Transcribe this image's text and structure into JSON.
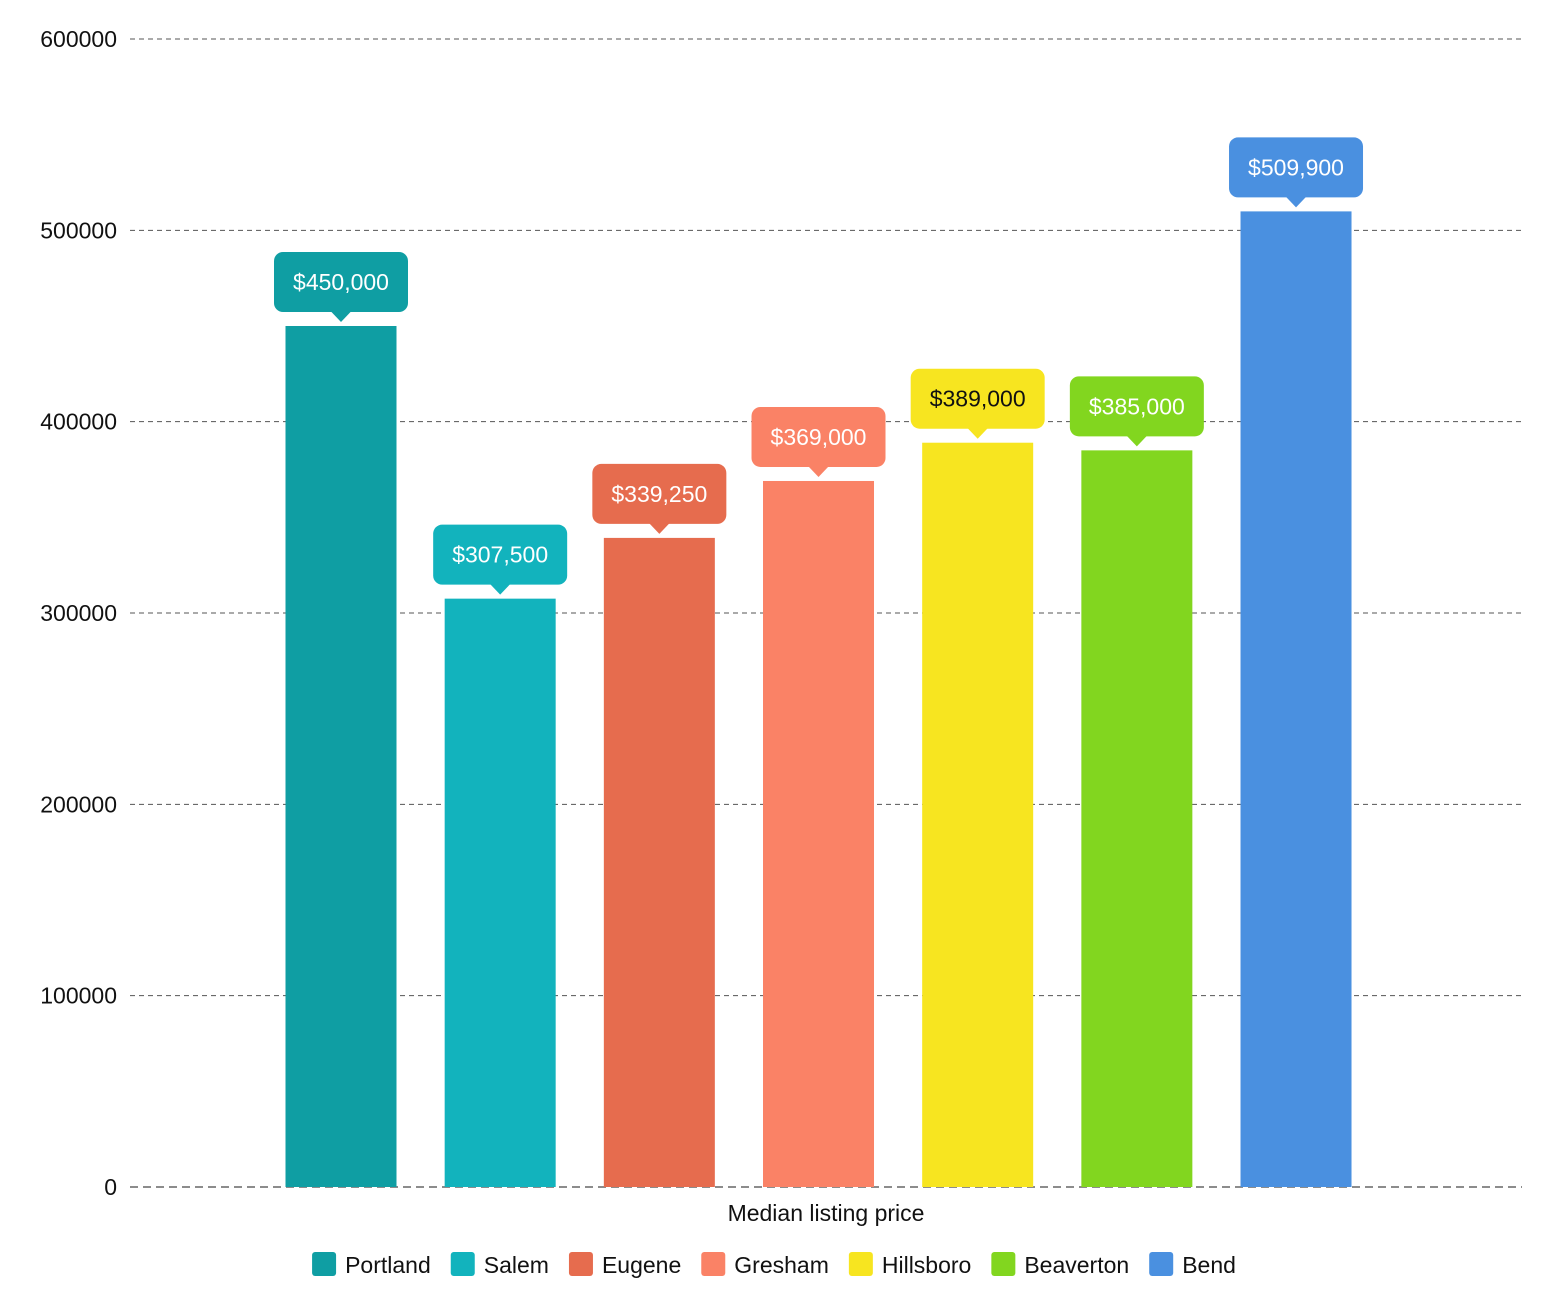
{
  "chart_data": {
    "type": "bar",
    "x_category_label": "Median listing price",
    "ylim": [
      0,
      600000
    ],
    "y_ticks": [
      "0",
      "100000",
      "200000",
      "300000",
      "400000",
      "500000",
      "600000"
    ],
    "grid": true,
    "legend_position": "bottom",
    "series": [
      {
        "name": "Portland",
        "values": [
          450000
        ],
        "color": "#0f9ea3",
        "label": "$450,000",
        "label_text_color": "#ffffff"
      },
      {
        "name": "Salem",
        "values": [
          307500
        ],
        "color": "#12b3bd",
        "label": "$307,500",
        "label_text_color": "#ffffff"
      },
      {
        "name": "Eugene",
        "values": [
          339250
        ],
        "color": "#e66c4e",
        "label": "$339,250",
        "label_text_color": "#ffffff"
      },
      {
        "name": "Gresham",
        "values": [
          369000
        ],
        "color": "#fa8266",
        "label": "$369,000",
        "label_text_color": "#ffffff"
      },
      {
        "name": "Hillsboro",
        "values": [
          389000
        ],
        "color": "#f7e520",
        "label": "$389,000",
        "label_text_color": "#111111"
      },
      {
        "name": "Beaverton",
        "values": [
          385000
        ],
        "color": "#82d61f",
        "label": "$385,000",
        "label_text_color": "#ffffff"
      },
      {
        "name": "Bend",
        "values": [
          509900
        ],
        "color": "#4a90e0",
        "label": "$509,900",
        "label_text_color": "#ffffff"
      }
    ]
  }
}
